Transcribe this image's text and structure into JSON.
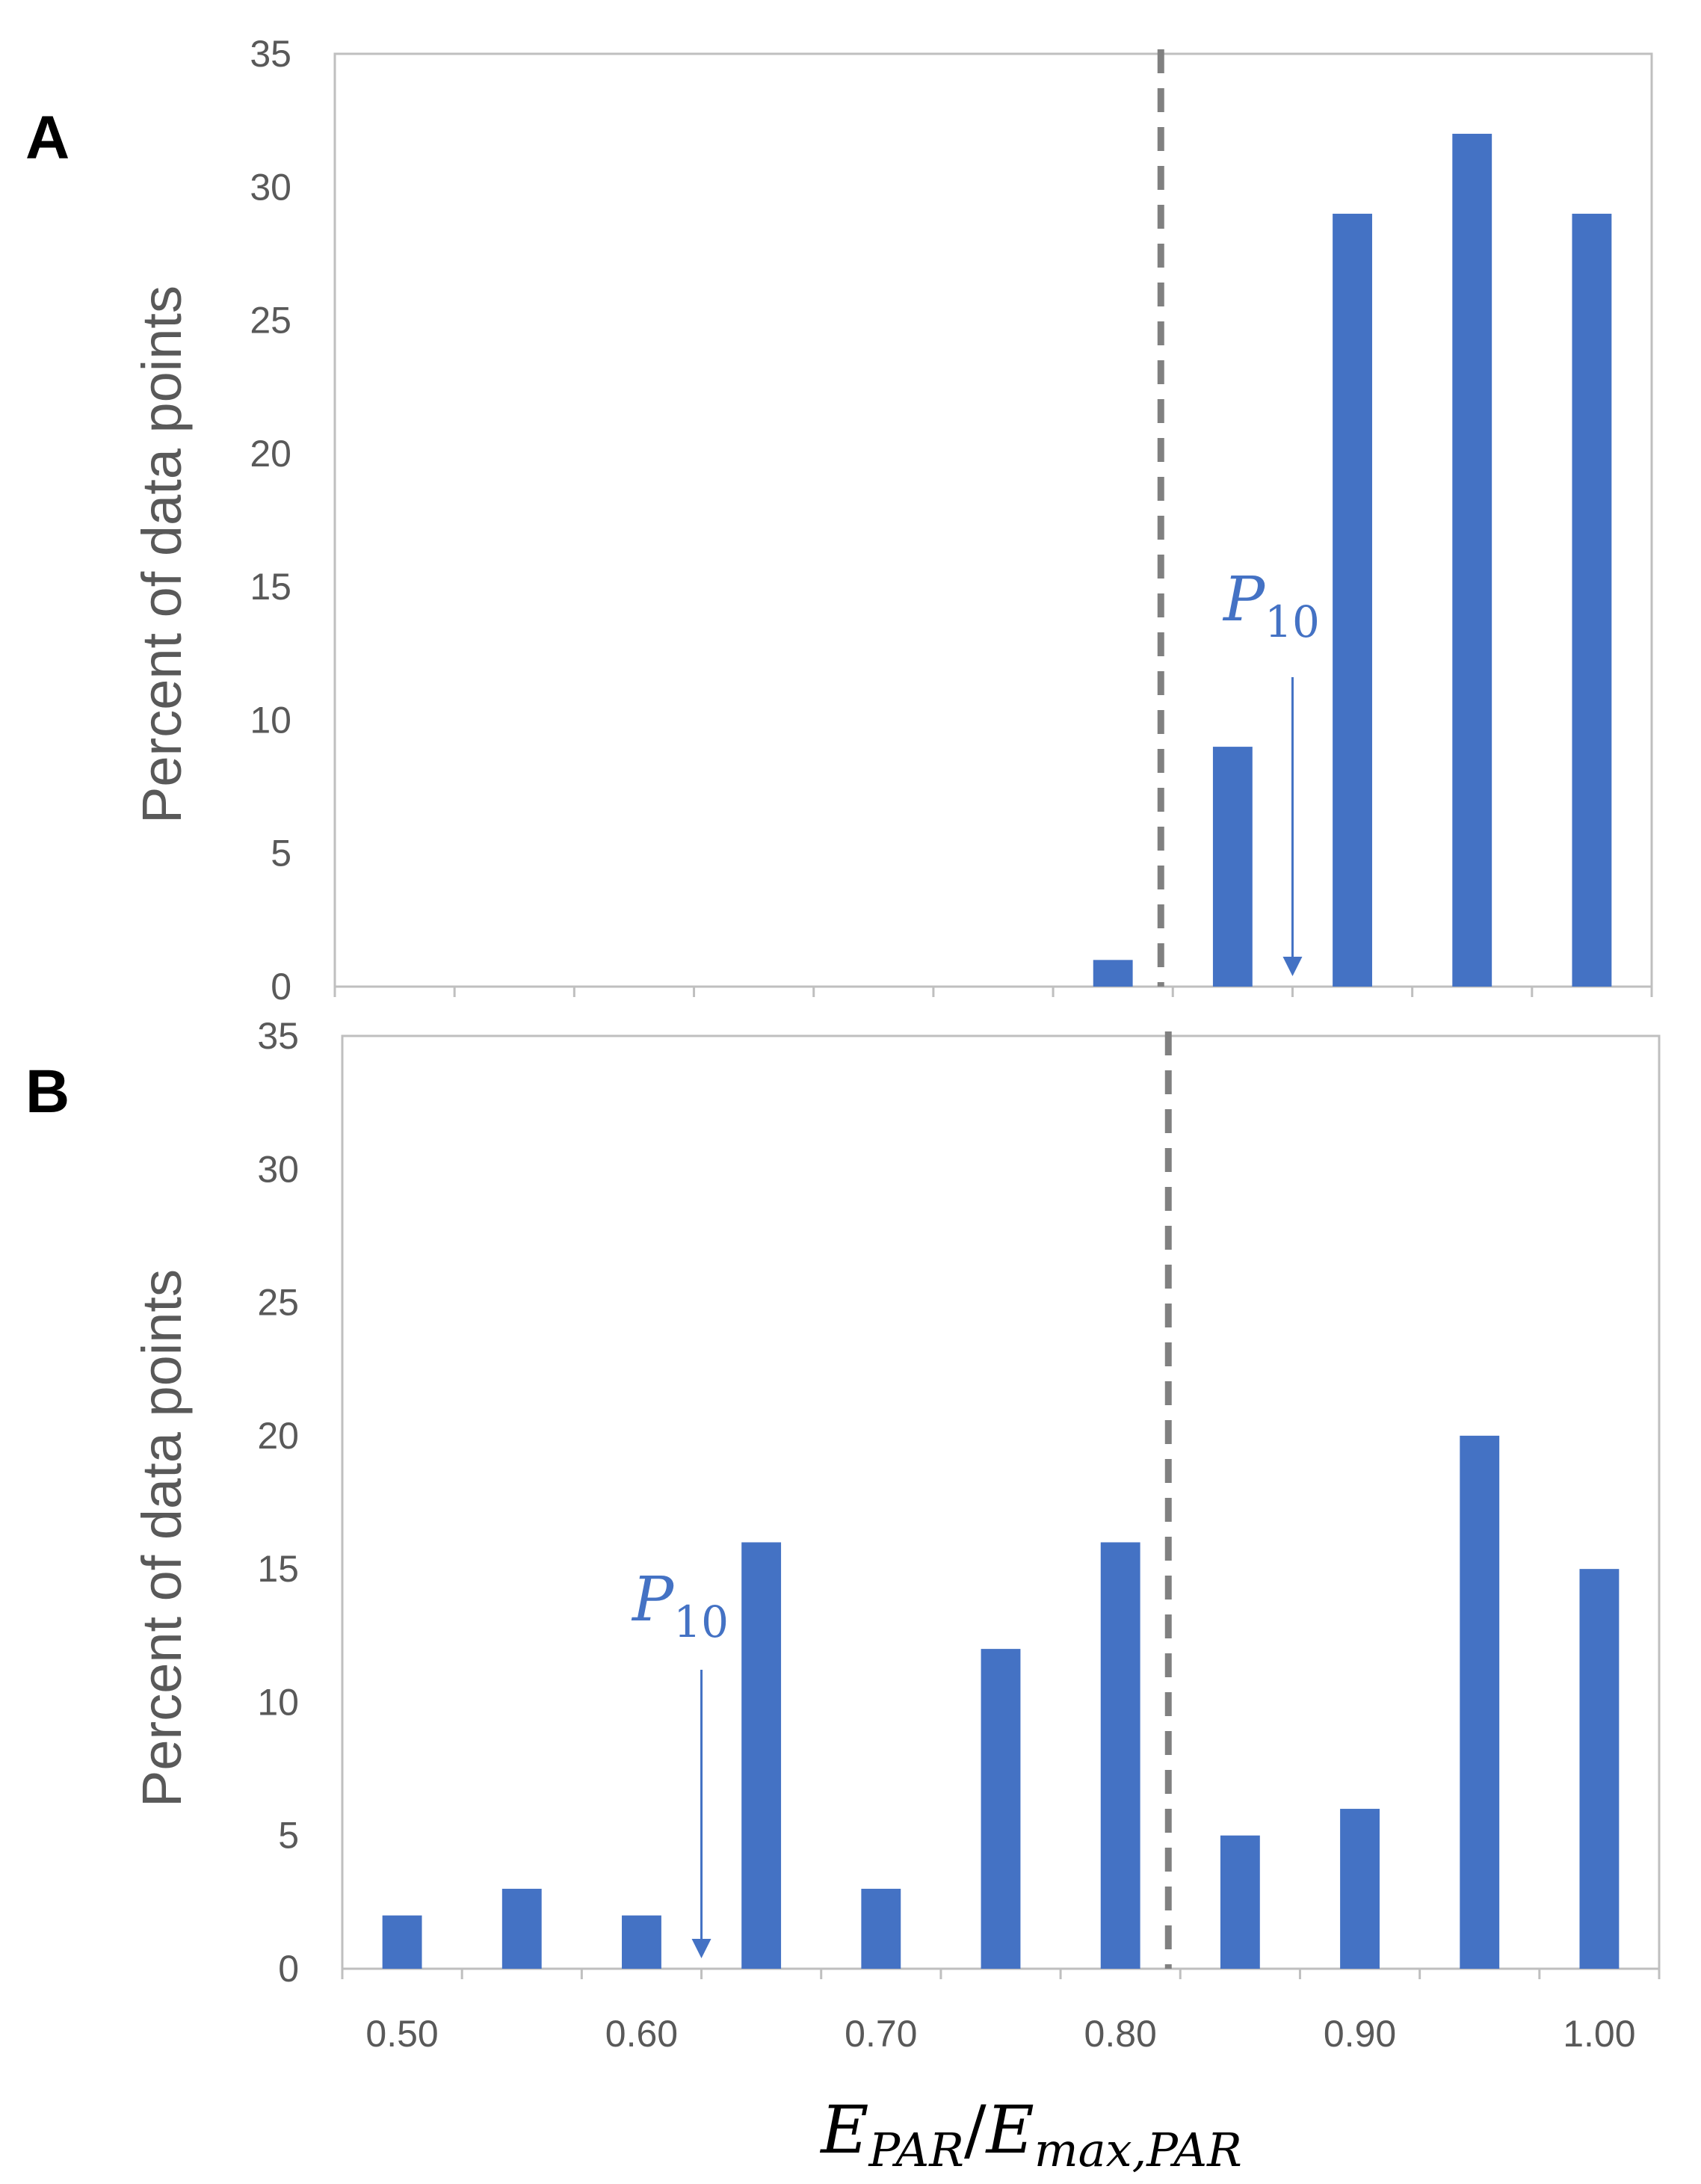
{
  "chart_data": [
    {
      "type": "bar",
      "panel_label": "A",
      "categories": [
        "0.50",
        "0.55",
        "0.60",
        "0.65",
        "0.70",
        "0.75",
        "0.80",
        "0.85",
        "0.90",
        "0.95",
        "1.00"
      ],
      "values": [
        0,
        0,
        0,
        0,
        0,
        0,
        1,
        9,
        29,
        32,
        29
      ],
      "ylabel": "Percent of data points",
      "ylim": [
        0,
        35
      ],
      "yticks": [
        "0",
        "5",
        "10",
        "15",
        "20",
        "25",
        "30",
        "35"
      ],
      "threshold_line_x": 0.82,
      "annotation": {
        "text_main": "P",
        "text_sub": "10",
        "x": 0.875
      },
      "colors": {
        "bar": "#4472C4",
        "annotation": "#4472C4",
        "threshold": "#808080",
        "axis": "#BFBFBF"
      }
    },
    {
      "type": "bar",
      "panel_label": "B",
      "categories": [
        "0.50",
        "0.55",
        "0.60",
        "0.65",
        "0.70",
        "0.75",
        "0.80",
        "0.85",
        "0.90",
        "0.95",
        "1.00"
      ],
      "values": [
        2,
        3,
        2,
        16,
        3,
        12,
        16,
        5,
        6,
        20,
        15
      ],
      "ylabel": "Percent of data points",
      "ylim": [
        0,
        35
      ],
      "yticks": [
        "0",
        "5",
        "10",
        "15",
        "20",
        "25",
        "30",
        "35"
      ],
      "xticks": [
        "0.50",
        "0.60",
        "0.70",
        "0.80",
        "0.90",
        "1.00"
      ],
      "xlabel": {
        "main1": "E",
        "sub1": "PAR",
        "slash": "/",
        "main2": "E",
        "sub2": "max,PAR"
      },
      "threshold_line_x": 0.82,
      "annotation": {
        "text_main": "P",
        "text_sub": "10",
        "x": 0.625
      },
      "colors": {
        "bar": "#4472C4",
        "annotation": "#4472C4",
        "threshold": "#808080",
        "axis": "#BFBFBF"
      }
    }
  ]
}
